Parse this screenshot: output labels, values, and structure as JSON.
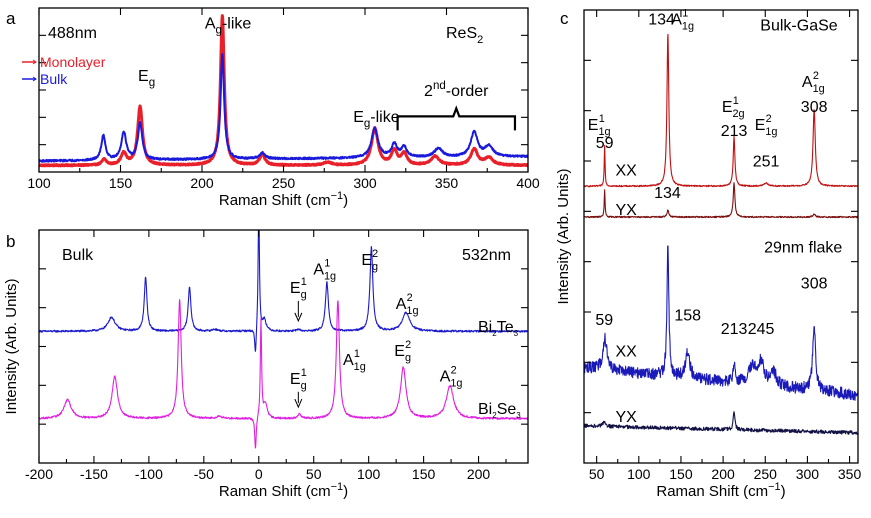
{
  "chart_data": [
    {
      "id": "a",
      "type": "line",
      "panel_label": "a",
      "corner_labels": {
        "left": "488nm",
        "right_main": "ReS",
        "right_sub": "2"
      },
      "xlabel": "Raman Shift (cm−1)",
      "xlim": [
        100,
        400
      ],
      "xticks": [
        100,
        150,
        200,
        250,
        300,
        350,
        400
      ],
      "xtick_labels": [
        "100",
        "150",
        "200",
        "250",
        "300",
        "350",
        "400"
      ],
      "ylim": [
        0,
        1.12
      ],
      "legend": {
        "position": "top-left",
        "entries": [
          "Monolayer",
          "Bulk"
        ]
      },
      "series": [
        {
          "name": "Monolayer",
          "color": "#e8202a",
          "width": 3,
          "baseline": 0.045,
          "noise": 0.004,
          "tilt": 0.0,
          "peaks": [
            [
              140,
              0.04,
              1.6
            ],
            [
              152,
              0.08,
              2
            ],
            [
              162,
              0.4,
              1.8
            ],
            [
              212.5,
              1.02,
              1.4
            ],
            [
              237,
              0.07,
              2
            ],
            [
              277,
              0.02,
              3
            ],
            [
              306,
              0.25,
              2.4
            ],
            [
              318,
              0.1,
              2
            ],
            [
              324,
              0.08,
              2
            ],
            [
              343,
              0.06,
              3
            ],
            [
              367,
              0.11,
              2.5
            ],
            [
              376,
              0.05,
              3
            ]
          ]
        },
        {
          "name": "Bulk",
          "color": "#1a1adc",
          "width": 2,
          "baseline": 0.075,
          "noise": 0.006,
          "tilt": 0.03,
          "peaks": [
            [
              139.5,
              0.17,
              1.5
            ],
            [
              152,
              0.19,
              1.8
            ],
            [
              162,
              0.25,
              1.6
            ],
            [
              212.5,
              0.72,
              1.3
            ],
            [
              237,
              0.04,
              2
            ],
            [
              306,
              0.2,
              2.4
            ],
            [
              318,
              0.09,
              2
            ],
            [
              324,
              0.07,
              2
            ],
            [
              345,
              0.06,
              3
            ],
            [
              367,
              0.17,
              2.5
            ],
            [
              376,
              0.07,
              3
            ]
          ]
        }
      ],
      "annotations": [
        {
          "main": "E",
          "sub": "g",
          "x": 166,
          "y": 0.62
        },
        {
          "main": "A",
          "sub": "g",
          "after": "-like",
          "x": 216,
          "y": 0.98
        },
        {
          "main": "E",
          "sub": "g",
          "after": "-like",
          "x": 307,
          "y": 0.34
        },
        {
          "main": "2",
          "sup": "nd",
          "after": "-order",
          "x": 356,
          "y": 0.52
        }
      ]
    },
    {
      "id": "b",
      "type": "line",
      "panel_label": "b",
      "corner_labels": {
        "left": "Bulk",
        "right": "532nm"
      },
      "xlabel": "Raman Shift (cm−1)",
      "ylabel": "Intensity (Arb. Units)",
      "xlim": [
        -200,
        245
      ],
      "xticks": [
        -200,
        -150,
        -100,
        -50,
        0,
        50,
        100,
        150,
        200
      ],
      "xtick_labels": [
        "-200",
        "-150",
        "-100",
        "-50",
        "0",
        "50",
        "100",
        "150",
        "200"
      ],
      "ylim": [
        0,
        1
      ],
      "series": [
        {
          "name": "Bi2Te3",
          "label_main": "Bi",
          "label_sub1": "2",
          "label_mid": "Te",
          "label_sub2": "3",
          "color": "#1a1acc",
          "width": 1.1,
          "baseline": 0.565,
          "noise": 0.004,
          "tilt": 0.0,
          "peaks": [
            [
              -134,
              0.06,
              4
            ],
            [
              -103,
              0.23,
              1.5
            ],
            [
              -63,
              0.19,
              1.5
            ],
            [
              -40,
              0.008,
              3
            ],
            [
              -3,
              -0.12,
              0.8
            ],
            [
              0,
              0.55,
              0.7
            ],
            [
              5,
              0.05,
              2
            ],
            [
              36,
              0.008,
              2
            ],
            [
              62,
              0.21,
              1.6
            ],
            [
              102.5,
              0.36,
              1.6
            ],
            [
              134,
              0.08,
              4
            ]
          ]
        },
        {
          "name": "Bi2Se3",
          "label_main": "Bi",
          "label_sub1": "2",
          "label_mid": "Se",
          "label_sub2": "3",
          "color": "#e020e0",
          "width": 1.1,
          "baseline": 0.19,
          "noise": 0.004,
          "tilt": 0.0,
          "peaks": [
            [
              -174,
              0.08,
              4
            ],
            [
              -131,
              0.18,
              3
            ],
            [
              -72,
              0.51,
              1.7
            ],
            [
              -36,
              0.01,
              3
            ],
            [
              -3,
              -0.14,
              0.8
            ],
            [
              2,
              0.42,
              0.7
            ],
            [
              6,
              0.06,
              2
            ],
            [
              37,
              0.02,
              1.5
            ],
            [
              72,
              0.51,
              1.7
            ],
            [
              131.5,
              0.22,
              3
            ],
            [
              174,
              0.14,
              4
            ]
          ]
        }
      ],
      "annotations": [
        {
          "main": "E",
          "sub": "g",
          "sup": "1",
          "x": 36,
          "y": 0.73,
          "arrow_to": 0.61
        },
        {
          "main": "A",
          "sub": "1g",
          "sup": "1",
          "x": 60,
          "y": 0.81
        },
        {
          "main": "E",
          "sub": "g",
          "sup": "2",
          "x": 101,
          "y": 0.85
        },
        {
          "main": "A",
          "sub": "1g",
          "sup": "2",
          "x": 135,
          "y": 0.66
        },
        {
          "main": "E",
          "sub": "g",
          "sup": "1",
          "x": 36,
          "y": 0.34,
          "arrow_to": 0.24
        },
        {
          "main": "A",
          "sub": "1g",
          "sup": "1",
          "x": 87,
          "y": 0.42
        },
        {
          "main": "E",
          "sub": "g",
          "sup": "2",
          "x": 131,
          "y": 0.46
        },
        {
          "main": "A",
          "sub": "1g",
          "sup": "2",
          "x": 175,
          "y": 0.35
        }
      ]
    },
    {
      "id": "c",
      "type": "line",
      "panel_label": "c",
      "xlabel": "Raman Shift (cm−1)",
      "ylabel": "Intensity (Arb. Units)",
      "xlim": [
        35,
        360
      ],
      "xticks": [
        50,
        100,
        150,
        200,
        250,
        300,
        350
      ],
      "xtick_labels": [
        "50",
        "100",
        "150",
        "200",
        "250",
        "300",
        "350"
      ],
      "ylim": [
        0,
        1
      ],
      "section_labels": [
        {
          "text": "Bulk-GaSe",
          "x": 290,
          "y": 0.955
        },
        {
          "text": "29nm flake",
          "x": 295,
          "y": 0.465
        }
      ],
      "series": [
        {
          "name": "Bulk XX",
          "label": "XX",
          "label_color": "#cc1010",
          "color": "#c01010",
          "width": 1.1,
          "baseline": 0.611,
          "noise": 0.0015,
          "tilt": 0.0,
          "label_x": 85,
          "label_y": 0.635,
          "peaks": [
            [
              59.5,
              0.09,
              0.6
            ],
            [
              134.5,
              0.34,
              1.3
            ],
            [
              213,
              0.11,
              1.2
            ],
            [
              251,
              0.007,
              3
            ],
            [
              308,
              0.17,
              1.6
            ]
          ]
        },
        {
          "name": "Bulk YX",
          "label": "YX",
          "label_color": "#7a1010",
          "color": "#7a1010",
          "width": 1.1,
          "baseline": 0.543,
          "noise": 0.0015,
          "tilt": 0.0,
          "label_x": 85,
          "label_y": 0.548,
          "peaks": [
            [
              59.5,
              0.06,
              0.6
            ],
            [
              134.5,
              0.015,
              1.3
            ],
            [
              213,
              0.075,
              1.2
            ],
            [
              308,
              0.006,
              1.6
            ]
          ]
        },
        {
          "name": "Flake XX",
          "label": "XX",
          "label_color": "#1a1acc",
          "color": "#1a1ab8",
          "width": 1.1,
          "baseline": 0.21,
          "noise": 0.013,
          "tilt": -0.06,
          "label_x": 85,
          "label_y": 0.235,
          "peaks": [
            [
              60,
              0.07,
              3
            ],
            [
              134.5,
              0.3,
              1.3
            ],
            [
              158,
              0.06,
              3
            ],
            [
              213,
              0.045,
              1.5
            ],
            [
              235,
              0.04,
              5
            ],
            [
              245,
              0.05,
              4
            ],
            [
              260,
              0.03,
              4
            ],
            [
              308,
              0.14,
              2.2
            ]
          ]
        },
        {
          "name": "Flake YX",
          "label": "YX",
          "label_color": "#111144",
          "color": "#111144",
          "width": 1.1,
          "baseline": 0.082,
          "noise": 0.004,
          "tilt": -0.015,
          "label_x": 85,
          "label_y": 0.09,
          "peaks": [
            [
              59,
              0.01,
              2
            ],
            [
              213,
              0.04,
              1.2
            ]
          ]
        }
      ],
      "annotations": [
        {
          "main": "E",
          "sub": "1g",
          "sup": "1",
          "x": 53,
          "y": 0.735
        },
        {
          "num": "59",
          "color": "#cc1010",
          "x": 59.5,
          "y": 0.695
        },
        {
          "num": "134",
          "color": "#cc1010",
          "x": 127,
          "y": 0.968
        },
        {
          "main": "A",
          "sub": "1g",
          "sup": "1",
          "x": 152,
          "y": 0.968
        },
        {
          "main": "E",
          "sub": "2g",
          "sup": "1",
          "x": 212,
          "y": 0.775
        },
        {
          "num": "213",
          "color": "#cc1010",
          "x": 213,
          "y": 0.722
        },
        {
          "main": "E",
          "sub": "1g",
          "sup": "2",
          "x": 251,
          "y": 0.735
        },
        {
          "num": "251",
          "color": "#cc1010",
          "x": 251,
          "y": 0.655
        },
        {
          "main": "A",
          "sub": "1g",
          "sup": "2",
          "x": 307,
          "y": 0.83
        },
        {
          "num": "308",
          "color": "#cc1010",
          "x": 308,
          "y": 0.775
        },
        {
          "num": "59",
          "color": "#1a1acc",
          "x": 59,
          "y": 0.305
        },
        {
          "num": "134",
          "color": "#1a1acc",
          "x": 134,
          "y": 0.585
        },
        {
          "num": "158",
          "color": "#1a1acc",
          "x": 158,
          "y": 0.315
        },
        {
          "num": "213",
          "color": "#1a1acc",
          "x": 213,
          "y": 0.285
        },
        {
          "num": "245",
          "color": "#1a1acc",
          "x": 245,
          "y": 0.285
        },
        {
          "num": "308",
          "color": "#1a1acc",
          "x": 308,
          "y": 0.385
        }
      ]
    }
  ]
}
